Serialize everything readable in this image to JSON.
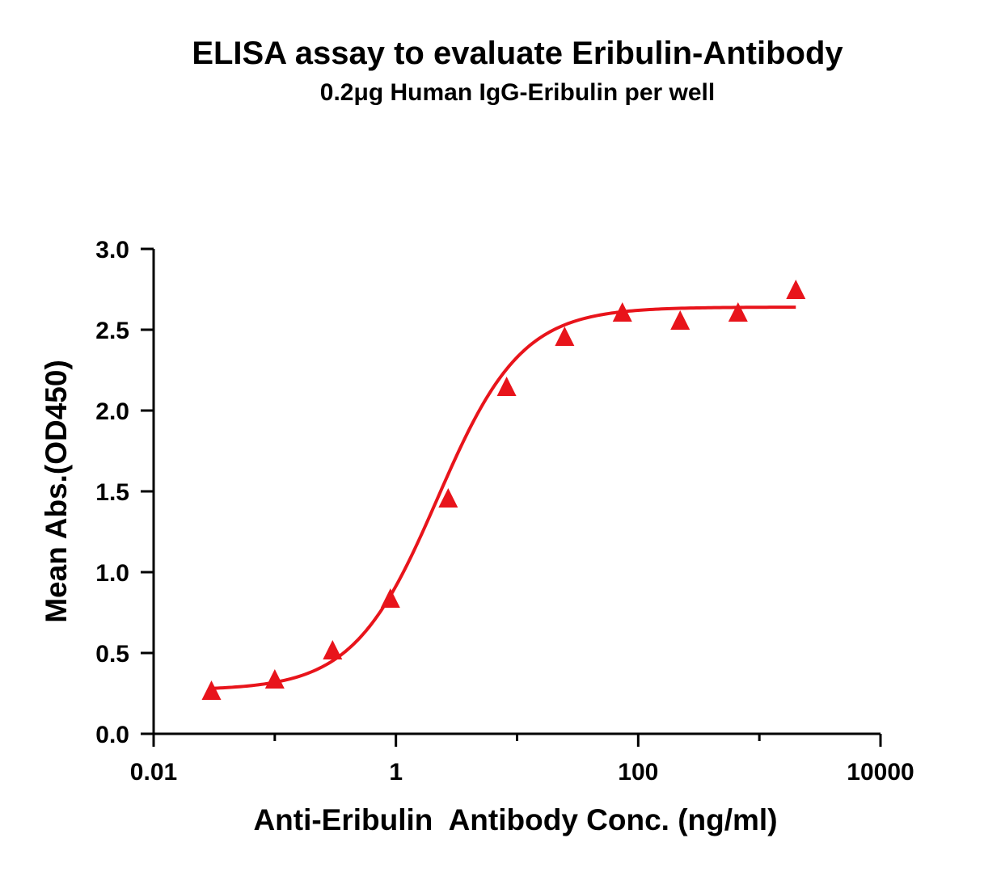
{
  "chart_data": {
    "type": "scatter",
    "title": "ELISA assay to evaluate Eribulin-Antibody",
    "subtitle": "0.2μg Human IgG-Eribulin per well",
    "xlabel": "Anti-Eribulin  Antibody Conc. (ng/ml)",
    "ylabel": "Mean Abs.(OD450)",
    "x_scale": "log",
    "xlim": [
      0.01,
      10000
    ],
    "ylim": [
      0,
      3.0
    ],
    "x_ticks": [
      {
        "value": 0.01,
        "label": "0.01"
      },
      {
        "value": 1,
        "label": "1"
      },
      {
        "value": 100,
        "label": "100"
      },
      {
        "value": 10000,
        "label": "10000"
      }
    ],
    "y_ticks": [
      {
        "value": 0.0,
        "label": "0.0"
      },
      {
        "value": 0.5,
        "label": "0.5"
      },
      {
        "value": 1.0,
        "label": "1.0"
      },
      {
        "value": 1.5,
        "label": "1.5"
      },
      {
        "value": 2.0,
        "label": "2.0"
      },
      {
        "value": 2.5,
        "label": "2.5"
      },
      {
        "value": 3.0,
        "label": "3.0"
      }
    ],
    "grid": false,
    "marker": "triangle",
    "color": "#e8141b",
    "series": [
      {
        "x": [
          0.03,
          0.1,
          0.3,
          0.9,
          2.7,
          8.2,
          24.7,
          74,
          222,
          667,
          2000
        ],
        "y": [
          0.26,
          0.33,
          0.51,
          0.83,
          1.45,
          2.14,
          2.45,
          2.6,
          2.55,
          2.6,
          2.74
        ]
      }
    ],
    "fit": {
      "model": "4PL",
      "bottom": 0.27,
      "top": 2.64,
      "ec50": 2.2,
      "hill": 1.25,
      "x_range": [
        0.03,
        2000
      ]
    }
  }
}
